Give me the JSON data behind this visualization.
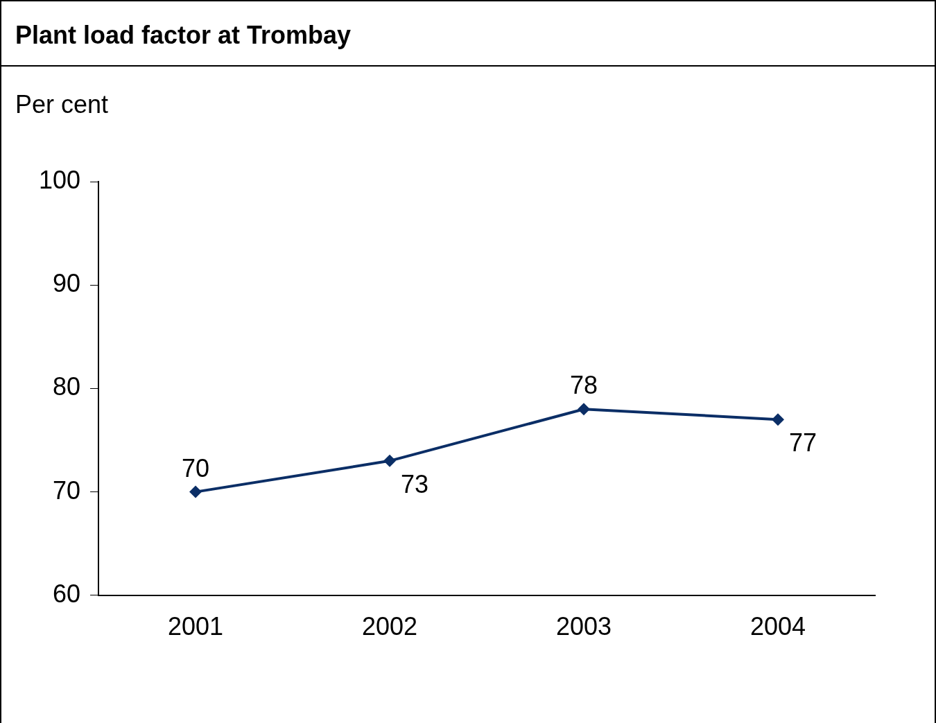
{
  "chart_data": {
    "type": "line",
    "title": "Plant load factor at Trombay",
    "ylabel": "Per cent",
    "categories": [
      "2001",
      "2002",
      "2003",
      "2004"
    ],
    "series": [
      {
        "color": "#0b2e66",
        "values": [
          70,
          73,
          78,
          77
        ]
      }
    ],
    "ylim": [
      60,
      100
    ],
    "yticks": [
      60,
      70,
      80,
      90,
      100
    ],
    "data_labels": true,
    "marker": "diamond",
    "line_style": "solid",
    "grid": false,
    "legend": false
  }
}
